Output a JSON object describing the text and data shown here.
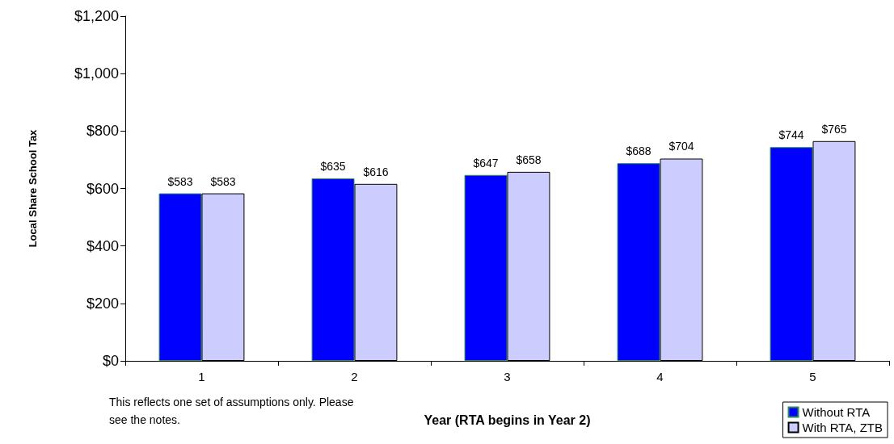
{
  "chart_data": {
    "type": "bar",
    "categories": [
      "1",
      "2",
      "3",
      "4",
      "5"
    ],
    "series": [
      {
        "name": "Without RTA",
        "color": "#0000ff",
        "values": [
          583,
          635,
          647,
          688,
          744
        ],
        "value_labels": [
          "$583",
          "$635",
          "$647",
          "$688",
          "$744"
        ]
      },
      {
        "name": "With RTA, ZTB",
        "color": "#ccccff",
        "values": [
          583,
          616,
          658,
          704,
          765
        ],
        "value_labels": [
          "$583",
          "$616",
          "$658",
          "$704",
          "$765"
        ]
      }
    ],
    "ylabel": "Local Share School Tax",
    "xlabel": "Year (RTA begins in Year 2)",
    "ylim": [
      0,
      1200
    ],
    "yticks": [
      {
        "value": 0,
        "label": "$0"
      },
      {
        "value": 200,
        "label": "$200"
      },
      {
        "value": 400,
        "label": "$400"
      },
      {
        "value": 600,
        "label": "$600"
      },
      {
        "value": 800,
        "label": "$800"
      },
      {
        "value": 1000,
        "label": "$1,000"
      },
      {
        "value": 1200,
        "label": "$1,200"
      }
    ],
    "annotations": [
      "This reflects one set of assumptions only. Please see the notes."
    ],
    "legend": "bottom right",
    "grid": false
  }
}
